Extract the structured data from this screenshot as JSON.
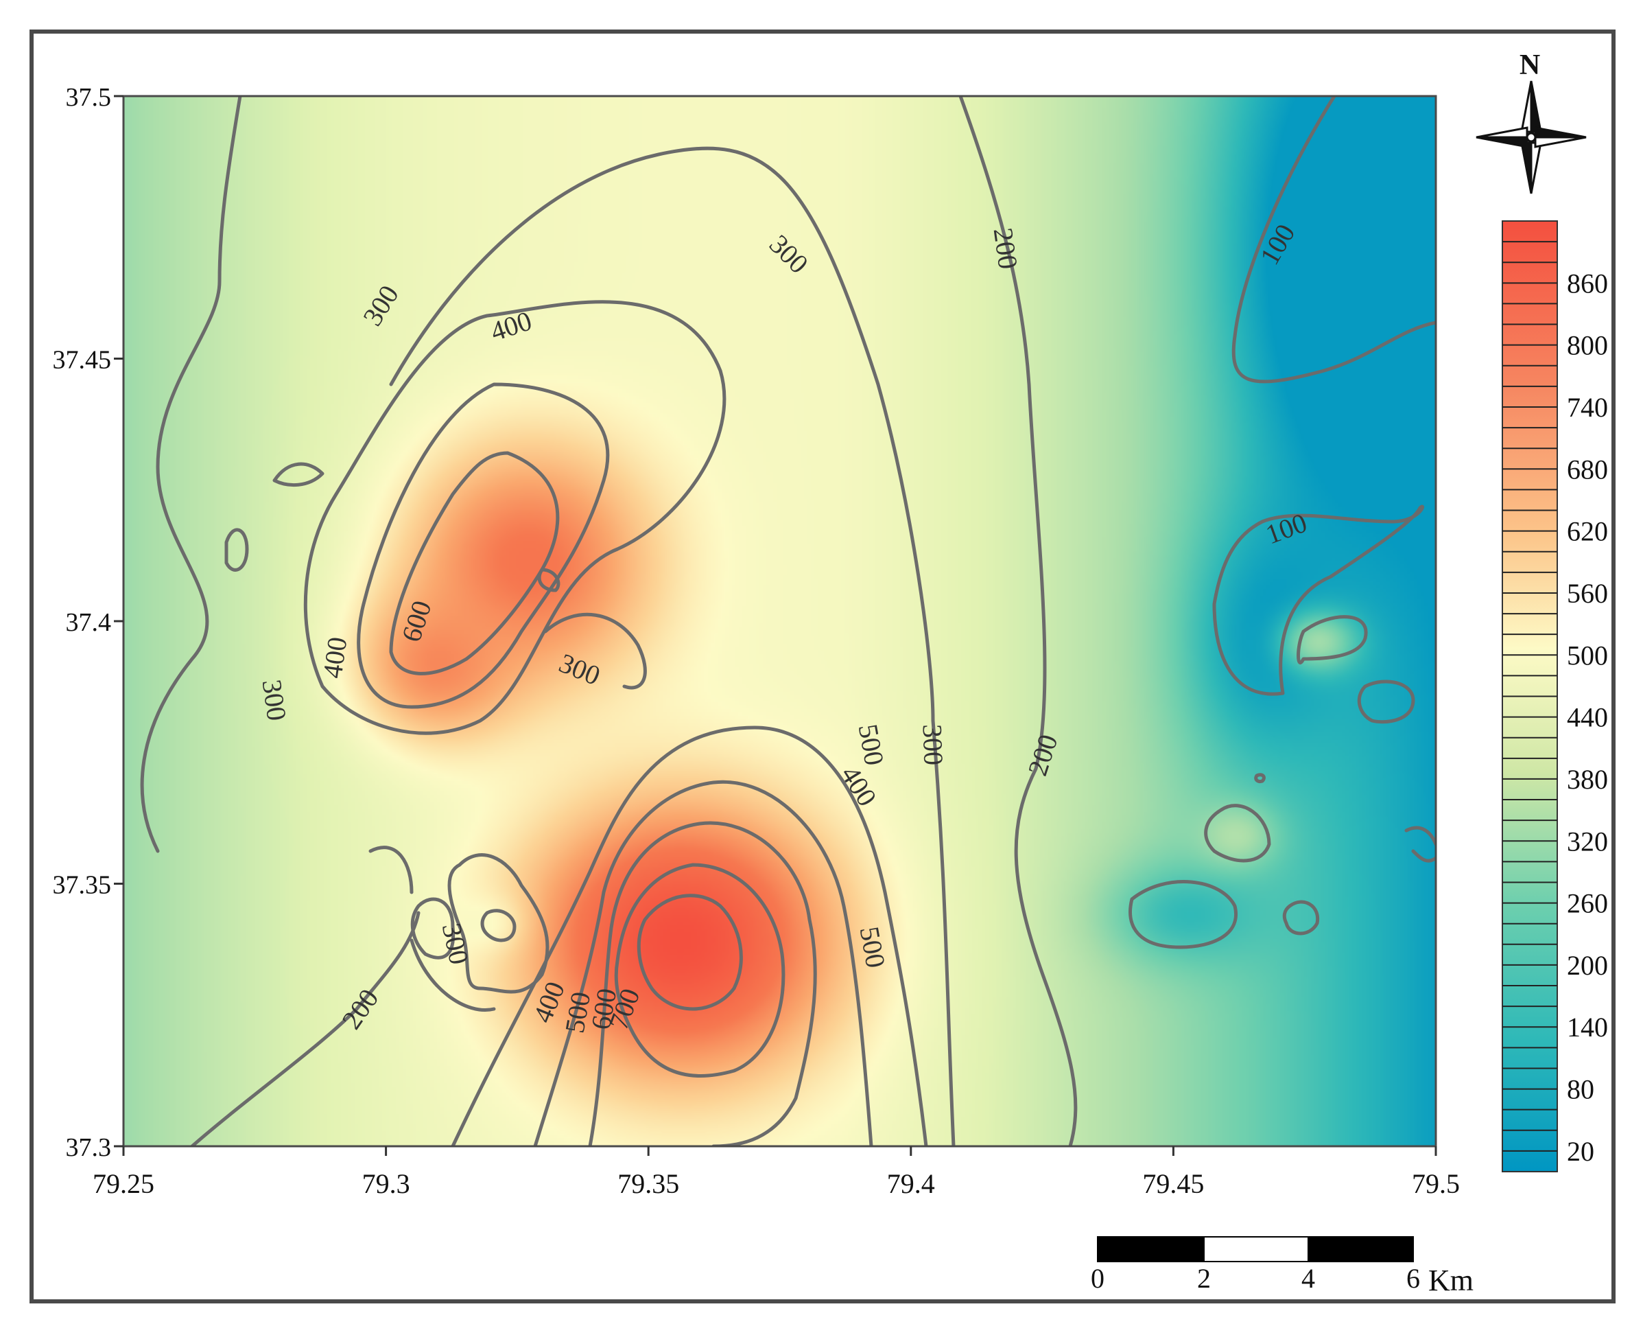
{
  "map": {
    "north_label": "N",
    "scale_bar": {
      "ticks": [
        "0",
        "2",
        "4",
        "6"
      ],
      "unit": "Km"
    }
  },
  "colors": {
    "high": "#f4503f",
    "mid": "#fdfac6",
    "low": "#0096c2",
    "contour": "#6b6b6b",
    "frame": "#4a4a4a"
  },
  "chart_data": {
    "type": "heatmap",
    "x_ticks": [
      "79.25",
      "79.3",
      "79.35",
      "79.4",
      "79.45",
      "79.5"
    ],
    "y_ticks": [
      "37.5",
      "37.45",
      "37.4",
      "37.35",
      "37.3"
    ],
    "xlim": [
      79.25,
      79.5
    ],
    "ylim": [
      37.3,
      37.5
    ],
    "colorbar": {
      "ticks": [
        "860",
        "800",
        "740",
        "680",
        "620",
        "560",
        "500",
        "440",
        "380",
        "320",
        "260",
        "200",
        "140",
        "80",
        "20"
      ],
      "range": [
        0,
        920
      ]
    },
    "peaks": [
      {
        "lon": 79.356,
        "lat": 37.339,
        "value": 900
      },
      {
        "lon": 79.327,
        "lat": 37.411,
        "value": 700
      },
      {
        "lon": 79.31,
        "lat": 37.392,
        "value": 640
      },
      {
        "lon": 79.478,
        "lat": 37.396,
        "value": 210
      },
      {
        "lon": 79.462,
        "lat": 37.359,
        "value": 230
      }
    ],
    "contour_labels": [
      "300",
      "300",
      "400",
      "200",
      "100",
      "100",
      "500",
      "600",
      "400",
      "300",
      "300",
      "300",
      "200",
      "400",
      "500",
      "300",
      "200",
      "400",
      "500",
      "600",
      "700"
    ]
  }
}
